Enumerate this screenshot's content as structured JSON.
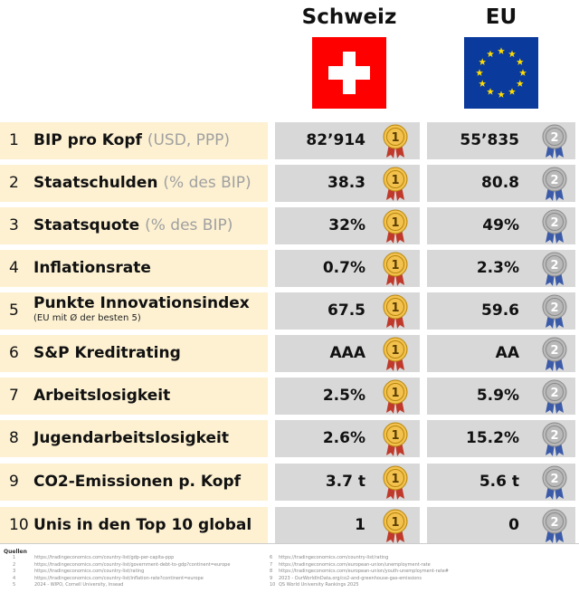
{
  "columns": {
    "ch": "Schweiz",
    "eu": "EU"
  },
  "medal_colors": {
    "gold": "#f2c14e",
    "silver": "#b9b9b9",
    "ribbon_gold": "#c0392b",
    "ribbon_silver": "#3b5ba9"
  },
  "rows": [
    {
      "num": "1",
      "label": "BIP pro Kopf",
      "sub": "(USD, PPP)",
      "ch": "82’914",
      "eu": "55’835"
    },
    {
      "num": "2",
      "label": "Staatschulden",
      "sub": "(% des BIP)",
      "ch": "38.3",
      "eu": "80.8"
    },
    {
      "num": "3",
      "label": "Staatsquote",
      "sub": "(% des BIP)",
      "ch": "32%",
      "eu": "49%"
    },
    {
      "num": "4",
      "label": "Inflationsrate",
      "sub": "",
      "ch": "0.7%",
      "eu": "2.3%"
    },
    {
      "num": "5",
      "label": "Punkte Innovationsindex",
      "small": "(EU mit Ø der besten 5)",
      "ch": "67.5",
      "eu": "59.6"
    },
    {
      "num": "6",
      "label": "S&P Kreditrating",
      "sub": "",
      "ch": "AAA",
      "eu": "AA"
    },
    {
      "num": "7",
      "label": "Arbeitslosigkeit",
      "sub": "",
      "ch": "2.5%",
      "eu": "5.9%"
    },
    {
      "num": "8",
      "label": "Jugendarbeitslosigkeit",
      "sub": "",
      "ch": "2.6%",
      "eu": "15.2%"
    },
    {
      "num": "9",
      "label": "CO2-Emissionen p. Kopf",
      "sub": "",
      "ch": "3.7 t",
      "eu": "5.6 t"
    },
    {
      "num": "10",
      "label": "Unis in den Top 10 global",
      "sub": "",
      "ch": "1",
      "eu": "0"
    }
  ],
  "medals": {
    "first": "1",
    "second": "2"
  },
  "sources": {
    "title": "Quellen",
    "items": [
      {
        "n": "1",
        "text": "https://tradingeconomics.com/country-list/gdp-per-capita-ppp"
      },
      {
        "n": "2",
        "text": "https://tradingeconomics.com/country-list/government-debt-to-gdp?continent=europe"
      },
      {
        "n": "3",
        "text": "https://tradingeconomics.com/country-list/rating"
      },
      {
        "n": "4",
        "text": "https://tradingeconomics.com/country-list/inflation-rate?continent=europe"
      },
      {
        "n": "5",
        "text": "2024 - WIPO, Cornell University, Insead"
      },
      {
        "n": "6",
        "text": "https://tradingeconomics.com/country-list/rating"
      },
      {
        "n": "7",
        "text": "https://tradingeconomics.com/european-union/unemployment-rate"
      },
      {
        "n": "8",
        "text": "https://tradingeconomics.com/european-union/youth-unemployment-rate#"
      },
      {
        "n": "9",
        "text": "2023 - OurWorldInData.org/co2-and-greenhouse-gas-emissions"
      },
      {
        "n": "10",
        "text": "QS World University Rankings 2025"
      }
    ]
  }
}
